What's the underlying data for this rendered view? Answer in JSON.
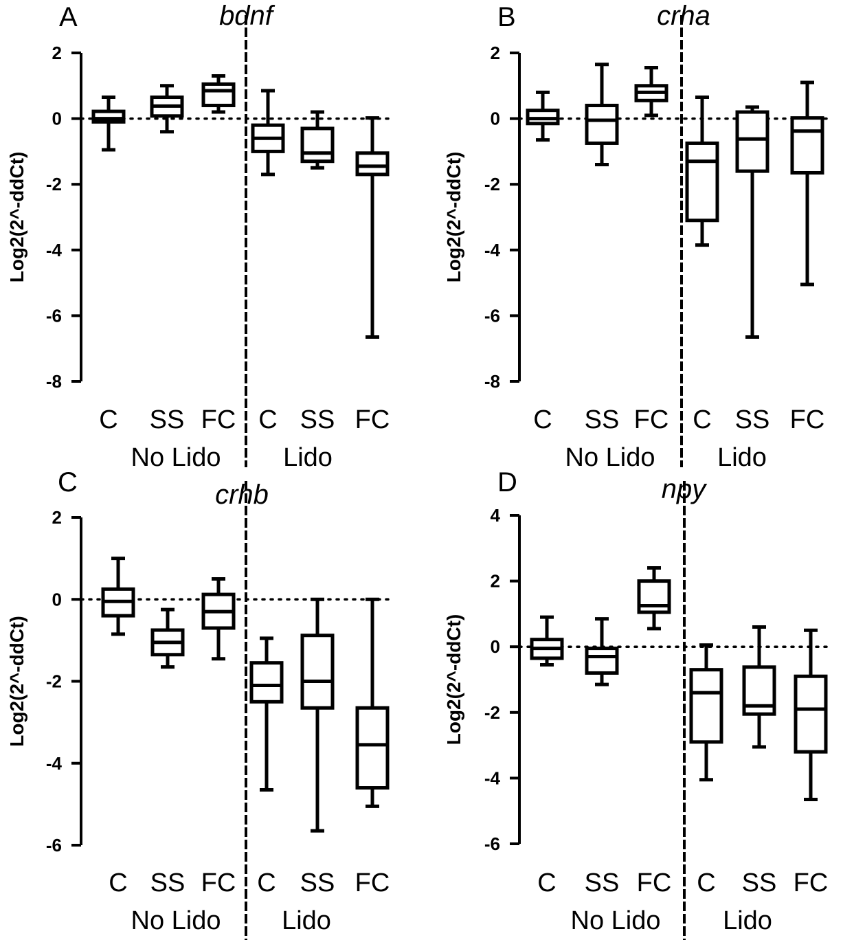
{
  "chart_data": [
    {
      "type": "box",
      "panel_letter": "A",
      "title": "bdnf",
      "ylabel": "Log2(2^-ddCt)",
      "ylim": [
        -8,
        2
      ],
      "yticks": [
        2,
        0,
        -2,
        -4,
        -6,
        -8
      ],
      "reference_line": 0,
      "categories": [
        "C",
        "SS",
        "FC",
        "C",
        "SS",
        "FC"
      ],
      "groups": [
        {
          "label": "No Lido",
          "categories": [
            "C",
            "SS",
            "FC"
          ]
        },
        {
          "label": "Lido",
          "categories": [
            "C",
            "SS",
            "FC"
          ]
        }
      ],
      "boxes": [
        {
          "group": "No Lido",
          "category": "C",
          "min": -0.95,
          "q1": -0.1,
          "median": 0.0,
          "q3": 0.22,
          "max": 0.65
        },
        {
          "group": "No Lido",
          "category": "SS",
          "min": -0.4,
          "q1": 0.08,
          "median": 0.38,
          "q3": 0.65,
          "max": 1.0
        },
        {
          "group": "No Lido",
          "category": "FC",
          "min": 0.2,
          "q1": 0.4,
          "median": 0.85,
          "q3": 1.05,
          "max": 1.3
        },
        {
          "group": "Lido",
          "category": "C",
          "min": -1.7,
          "q1": -1.0,
          "median": -0.6,
          "q3": -0.2,
          "max": 0.85
        },
        {
          "group": "Lido",
          "category": "SS",
          "min": -1.5,
          "q1": -1.3,
          "median": -1.05,
          "q3": -0.3,
          "max": 0.2
        },
        {
          "group": "Lido",
          "category": "FC",
          "min": -6.65,
          "q1": -1.7,
          "median": -1.45,
          "q3": -1.05,
          "max": 0.02
        }
      ]
    },
    {
      "type": "box",
      "panel_letter": "B",
      "title": "crha",
      "ylabel": "Log2(2^-ddCt)",
      "ylim": [
        -8,
        2
      ],
      "yticks": [
        2,
        0,
        -2,
        -4,
        -6,
        -8
      ],
      "reference_line": 0,
      "categories": [
        "C",
        "SS",
        "FC",
        "C",
        "SS",
        "FC"
      ],
      "groups": [
        {
          "label": "No Lido",
          "categories": [
            "C",
            "SS",
            "FC"
          ]
        },
        {
          "label": "Lido",
          "categories": [
            "C",
            "SS",
            "FC"
          ]
        }
      ],
      "boxes": [
        {
          "group": "No Lido",
          "category": "C",
          "min": -0.65,
          "q1": -0.15,
          "median": 0.0,
          "q3": 0.25,
          "max": 0.8
        },
        {
          "group": "No Lido",
          "category": "SS",
          "min": -1.4,
          "q1": -0.75,
          "median": -0.05,
          "q3": 0.4,
          "max": 1.65
        },
        {
          "group": "No Lido",
          "category": "FC",
          "min": 0.1,
          "q1": 0.55,
          "median": 0.8,
          "q3": 1.0,
          "max": 1.55
        },
        {
          "group": "Lido",
          "category": "C",
          "min": -3.85,
          "q1": -3.1,
          "median": -1.3,
          "q3": -0.75,
          "max": 0.65
        },
        {
          "group": "Lido",
          "category": "SS",
          "min": -6.65,
          "q1": -1.6,
          "median": -0.62,
          "q3": 0.2,
          "max": 0.35
        },
        {
          "group": "Lido",
          "category": "FC",
          "min": -5.05,
          "q1": -1.65,
          "median": -0.38,
          "q3": 0.02,
          "max": 1.1
        }
      ]
    },
    {
      "type": "box",
      "panel_letter": "C",
      "title": "crhb",
      "ylabel": "Log2(2^-ddCt)",
      "ylim": [
        -6,
        2
      ],
      "yticks": [
        2,
        0,
        -2,
        -4,
        -6
      ],
      "reference_line": 0,
      "categories": [
        "C",
        "SS",
        "FC",
        "C",
        "SS",
        "FC"
      ],
      "groups": [
        {
          "group_key": "a",
          "label": "No Lido",
          "categories": [
            "C",
            "SS",
            "FC"
          ]
        },
        {
          "group_key": "b",
          "label": "Lido",
          "categories": [
            "C",
            "SS",
            "FC"
          ]
        }
      ],
      "boxes": [
        {
          "group": "No Lido",
          "category": "C",
          "min": -0.85,
          "q1": -0.4,
          "median": -0.05,
          "q3": 0.25,
          "max": 1.0
        },
        {
          "group": "No Lido",
          "category": "SS",
          "min": -1.65,
          "q1": -1.35,
          "median": -1.05,
          "q3": -0.75,
          "max": -0.25
        },
        {
          "group": "No Lido",
          "category": "FC",
          "min": -1.45,
          "q1": -0.7,
          "median": -0.3,
          "q3": 0.12,
          "max": 0.5
        },
        {
          "group": "Lido",
          "category": "C",
          "min": -4.65,
          "q1": -2.5,
          "median": -2.1,
          "q3": -1.55,
          "max": -0.95
        },
        {
          "group": "Lido",
          "category": "SS",
          "min": -5.65,
          "q1": -2.65,
          "median": -2.0,
          "q3": -0.88,
          "max": 0.0
        },
        {
          "group": "Lido",
          "category": "FC",
          "min": -5.05,
          "q1": -4.6,
          "median": -3.55,
          "q3": -2.65,
          "max": 0.0
        }
      ]
    },
    {
      "type": "box",
      "panel_letter": "D",
      "title": "npy",
      "ylabel": "Log2(2^-ddCt)",
      "ylim": [
        -6,
        4
      ],
      "yticks": [
        4,
        2,
        0,
        -2,
        -4,
        -6
      ],
      "reference_line": 0,
      "categories": [
        "C",
        "SS",
        "FC",
        "C",
        "SS",
        "FC"
      ],
      "groups": [
        {
          "label": "No Lido",
          "categories": [
            "C",
            "SS",
            "FC"
          ]
        },
        {
          "label": "Lido",
          "categories": [
            "C",
            "SS",
            "FC"
          ]
        }
      ],
      "boxes": [
        {
          "group": "No Lido",
          "category": "C",
          "min": -0.55,
          "q1": -0.35,
          "median": -0.05,
          "q3": 0.22,
          "max": 0.9
        },
        {
          "group": "No Lido",
          "category": "SS",
          "min": -1.15,
          "q1": -0.8,
          "median": -0.3,
          "q3": -0.05,
          "max": 0.85
        },
        {
          "group": "No Lido",
          "category": "FC",
          "min": 0.55,
          "q1": 1.05,
          "median": 1.25,
          "q3": 2.0,
          "max": 2.4
        },
        {
          "group": "Lido",
          "category": "C",
          "min": -4.05,
          "q1": -2.9,
          "median": -1.4,
          "q3": -0.7,
          "max": 0.05
        },
        {
          "group": "Lido",
          "category": "SS",
          "min": -3.05,
          "q1": -2.05,
          "median": -1.8,
          "q3": -0.62,
          "max": 0.6
        },
        {
          "group": "Lido",
          "category": "FC",
          "min": -4.65,
          "q1": -3.2,
          "median": -1.9,
          "q3": -0.9,
          "max": 0.5
        }
      ]
    }
  ]
}
